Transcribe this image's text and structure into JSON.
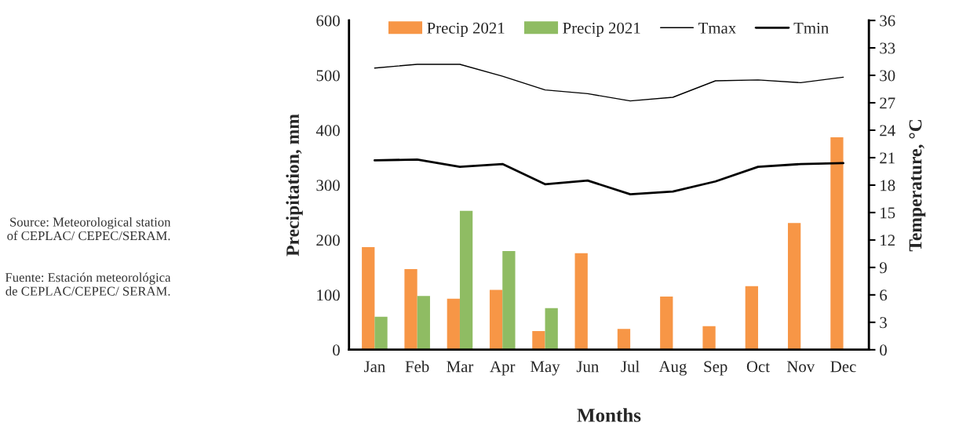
{
  "chart_data": {
    "type": "bar",
    "xlabel": "Months",
    "ylabel": "Precipitation, mm",
    "y2label": "Temperature, °C",
    "categories": [
      "Jan",
      "Feb",
      "Mar",
      "Apr",
      "May",
      "Jun",
      "Jul",
      "Aug",
      "Sep",
      "Oct",
      "Nov",
      "Dec"
    ],
    "series": [
      {
        "name": "Precip 2021",
        "color": "#f79646",
        "values": [
          187,
          147,
          93,
          109,
          34,
          176,
          38,
          97,
          43,
          116,
          231,
          387
        ]
      },
      {
        "name": "Precip 2021",
        "color": "#8fbc63",
        "values": [
          60,
          98,
          253,
          180,
          76,
          null,
          null,
          null,
          null,
          null,
          null,
          null
        ]
      },
      {
        "name": "Tmax",
        "type": "line",
        "axis": "y2",
        "color": "#000000",
        "values": [
          30.8,
          31.2,
          31.2,
          29.9,
          28.4,
          28.0,
          27.2,
          27.6,
          29.4,
          29.5,
          29.2,
          29.8
        ]
      },
      {
        "name": "Tmin",
        "type": "line",
        "axis": "y2",
        "color": "#000000",
        "values": [
          20.7,
          20.8,
          20.0,
          20.3,
          18.1,
          18.5,
          17.0,
          17.3,
          18.4,
          20.0,
          20.3,
          20.4
        ]
      }
    ],
    "ylim": [
      0,
      600
    ],
    "yticks": [
      0,
      100,
      200,
      300,
      400,
      500,
      600
    ],
    "y2lim": [
      0,
      36
    ],
    "y2ticks": [
      0,
      3,
      6,
      9,
      12,
      15,
      18,
      21,
      24,
      27,
      30,
      33,
      36
    ],
    "legend": "top",
    "grid": false,
    "marker": "none",
    "line_style": "solid",
    "annotations": [
      "Source: Meteorological station of CEPLAC/ CEPEC/SERAM.",
      "Fuente: Estación meteorológica de CEPLAC/CEPEC/ SERAM."
    ]
  }
}
